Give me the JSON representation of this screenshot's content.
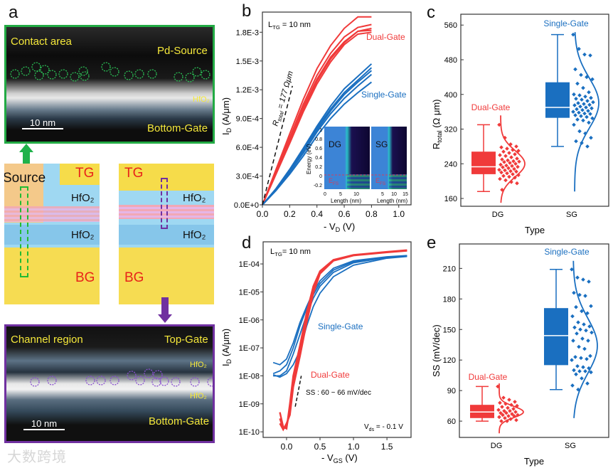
{
  "panel_labels": {
    "a": "a",
    "b": "b",
    "c": "c",
    "d": "d",
    "e": "e"
  },
  "colors": {
    "dual_gate": "#f03a3a",
    "single_gate": "#1a6fc0",
    "contact_border": "#22aa44",
    "channel_border": "#7030a0",
    "label_yellow": "#f5e83a"
  },
  "panel_a": {
    "contact_tem": {
      "title": "Contact area",
      "source": "Pd-Source",
      "oxide": "HfO₂",
      "gate": "Bottom-Gate",
      "scale": "10 nm"
    },
    "schematic_contact": {
      "source": "Source",
      "top_gate": "TG",
      "oxide_top": "HfO₂",
      "oxide_bottom": "HfO₂",
      "bottom_gate": "BG"
    },
    "schematic_channel": {
      "top_gate": "TG",
      "oxide_top": "HfO₂",
      "oxide_bottom": "HfO₂",
      "bottom_gate": "BG"
    },
    "channel_tem": {
      "title": "Channel region",
      "top_gate": "Top-Gate",
      "oxide_top": "HfO₂",
      "oxide_bottom": "HfO₂",
      "gate": "Bottom-Gate",
      "scale": "10 nm"
    }
  },
  "watermark": "大数跨境",
  "chart_data": [
    {
      "id": "b",
      "type": "line",
      "xlabel_main": "- V",
      "xlabel_sub": "D",
      "xlabel_tail": " (V)",
      "ylabel_main": "I",
      "ylabel_sub": "D",
      "ylabel_tail": " (A/μm)",
      "xlim": [
        0,
        1.09
      ],
      "ylim": [
        0,
        0.00201
      ],
      "xticks": [
        {
          "v": 0,
          "l": "0.0"
        },
        {
          "v": 0.2,
          "l": "0.2"
        },
        {
          "v": 0.4,
          "l": "0.4"
        },
        {
          "v": 0.6,
          "l": "0.6"
        },
        {
          "v": 0.8,
          "l": "0.8"
        },
        {
          "v": 1.0,
          "l": "1.0"
        }
      ],
      "yticks": [
        {
          "v": 0,
          "l": "0.0E+0"
        },
        {
          "v": 0.0003,
          "l": "3.0E-4"
        },
        {
          "v": 0.0006,
          "l": "6.0E-4"
        },
        {
          "v": 0.0009,
          "l": "9.0E-4"
        },
        {
          "v": 0.0012,
          "l": "1.2E-3"
        },
        {
          "v": 0.0015,
          "l": "1.5E-3"
        },
        {
          "v": 0.0018,
          "l": "1.8E-3"
        }
      ],
      "annotation_ltg": {
        "main": "L",
        "sub": "TG",
        "tail": " = 10 nm"
      },
      "annotation_r": {
        "main": "R",
        "sub": "total",
        "tail": " = 177 Ωμm"
      },
      "x": [
        0,
        0.1,
        0.2,
        0.3,
        0.4,
        0.5,
        0.6,
        0.7,
        0.8
      ],
      "series": [
        {
          "name": "Dual-Gate",
          "group": "dg",
          "label": "Dual-Gate",
          "curves": [
            [
              0,
              0.00037,
              0.00074,
              0.0011,
              0.00142,
              0.00166,
              0.00184,
              0.00196,
              0.00196
            ],
            [
              0,
              0.00035,
              0.0007,
              0.00105,
              0.00135,
              0.00158,
              0.00175,
              0.00185,
              0.00188
            ],
            [
              0,
              0.00034,
              0.00068,
              0.00102,
              0.00131,
              0.00154,
              0.0017,
              0.00181,
              0.00184
            ],
            [
              0,
              0.00033,
              0.00066,
              0.001,
              0.00129,
              0.00152,
              0.00169,
              0.00181,
              0.00182
            ],
            [
              0,
              0.00032,
              0.00064,
              0.00097,
              0.00126,
              0.00149,
              0.00167,
              0.00178,
              0.0018
            ]
          ]
        },
        {
          "name": "Single-Gate",
          "group": "sg",
          "label": "Single-Gate",
          "curves": [
            [
              0,
              0.00017,
              0.00037,
              0.00059,
              0.00082,
              0.00103,
              0.00121,
              0.00134,
              0.00147
            ],
            [
              0,
              0.00016,
              0.00036,
              0.00057,
              0.0008,
              0.001,
              0.00117,
              0.0013,
              0.00143
            ],
            [
              0,
              0.00016,
              0.00035,
              0.00056,
              0.00078,
              0.00098,
              0.00115,
              0.00128,
              0.0014
            ],
            [
              0,
              0.00015,
              0.00034,
              0.00054,
              0.00076,
              0.00095,
              0.00111,
              0.00124,
              0.00136
            ],
            [
              0,
              0.00015,
              0.00032,
              0.00051,
              0.00072,
              0.0009,
              0.00105,
              0.00117,
              0.00128
            ]
          ]
        }
      ],
      "dashed_fit": {
        "x": [
          0,
          0.22
        ],
        "y": [
          0,
          0.00124
        ]
      },
      "inset": {
        "ylabel": "Energy (eV)",
        "xlabel": "Length (nm)",
        "yticks": [
          "1",
          "0.8",
          "0.6",
          "0.4",
          "0.2",
          "0",
          "-0.2"
        ],
        "xticks_dg": [
          "0",
          "5",
          "10"
        ],
        "xticks_sg": [
          "5",
          "10",
          "15"
        ],
        "panels": [
          "DG",
          "SG"
        ],
        "fermi": {
          "main": "E",
          "sub": "FS"
        }
      }
    },
    {
      "id": "c",
      "type": "box",
      "ylabel_main": "R",
      "ylabel_sub": "total",
      "ylabel_tail": " (Ω μm)",
      "xlabel": "Type",
      "ylim": [
        142,
        585
      ],
      "yticks": [
        160,
        240,
        320,
        400,
        480,
        560
      ],
      "groups": [
        {
          "category": "DG",
          "label": "Dual-Gate",
          "group": "dg",
          "whisker": [
            176,
            330
          ],
          "box": [
            216,
            268
          ],
          "median": 233,
          "dist_mean": 240,
          "dist_sd": 30,
          "dist_range": [
            150,
            355
          ],
          "points": [
            330,
            300,
            285,
            280,
            278,
            275,
            272,
            270,
            268,
            265,
            262,
            260,
            258,
            255,
            252,
            250,
            248,
            246,
            245,
            244,
            242,
            240,
            238,
            236,
            235,
            233,
            232,
            230,
            228,
            226,
            225,
            223,
            222,
            220,
            218,
            216,
            214,
            212,
            210,
            208,
            205,
            202,
            198,
            195,
            180
          ]
        },
        {
          "category": "SG",
          "label": "Single-Gate",
          "group": "sg",
          "whisker": [
            280,
            538
          ],
          "box": [
            346,
            428
          ],
          "median": 370,
          "dist_mean": 380,
          "dist_sd": 58,
          "dist_range": [
            176,
            550
          ],
          "points": [
            538,
            505,
            492,
            490,
            458,
            445,
            440,
            435,
            425,
            415,
            405,
            400,
            398,
            395,
            392,
            390,
            388,
            385,
            382,
            380,
            378,
            376,
            375,
            372,
            370,
            368,
            366,
            364,
            362,
            360,
            358,
            356,
            355,
            352,
            350,
            348,
            345,
            342,
            340,
            335,
            330,
            315,
            310,
            300,
            292,
            288,
            280
          ]
        }
      ]
    },
    {
      "id": "d",
      "type": "line",
      "log_y": true,
      "xlabel_main": "- V",
      "xlabel_sub": "GS",
      "xlabel_tail": " (V)",
      "ylabel_main": "I",
      "ylabel_sub": "D",
      "ylabel_tail": " (A/μm)",
      "xlim": [
        -0.35,
        1.86
      ],
      "ylim_log10": [
        -10.2,
        -3.21
      ],
      "xticks": [
        {
          "v": 0,
          "l": "0.0"
        },
        {
          "v": 0.5,
          "l": "0.5"
        },
        {
          "v": 1.0,
          "l": "1.0"
        },
        {
          "v": 1.5,
          "l": "1.5"
        }
      ],
      "yticks": [
        {
          "v": -10,
          "l": "1E-10"
        },
        {
          "v": -9,
          "l": "1E-09"
        },
        {
          "v": -8,
          "l": "1E-08"
        },
        {
          "v": -7,
          "l": "1E-07"
        },
        {
          "v": -6,
          "l": "1E-06"
        },
        {
          "v": -5,
          "l": "1E-05"
        },
        {
          "v": -4,
          "l": "1E-04"
        }
      ],
      "annotation_ltg": {
        "main": "L",
        "sub": "TG",
        "tail": "= 10 nm"
      },
      "annotation_ss": "SS : 60 ~ 66 mV/dec",
      "annotation_vds": {
        "main": "V",
        "sub": "ds",
        "tail": " = - 0.1 V"
      },
      "series": [
        {
          "name": "Dual-Gate",
          "group": "dg",
          "label": "Dual-Gate",
          "x": [
            -0.1,
            -0.05,
            0,
            0.05,
            0.1,
            0.2,
            0.3,
            0.4,
            0.5,
            0.7,
            1.0,
            1.5,
            1.8
          ],
          "curves": [
            [
              5e-10,
              1.5e-10,
              1.3e-10,
              1e-09,
              1e-08,
              1.2e-07,
              1.8e-06,
              1.6e-05,
              5.5e-05,
              0.00014,
              0.00021,
              0.00027,
              0.00031
            ],
            [
              3e-10,
              1.3e-10,
              1.5e-10,
              6e-10,
              6e-09,
              8e-08,
              1.2e-06,
              1.2e-05,
              5e-05,
              0.000135,
              0.000205,
              0.000265,
              0.0003
            ],
            [
              2e-10,
              1.2e-10,
              2e-10,
              4e-10,
              4e-09,
              5e-08,
              8e-07,
              9e-06,
              4.5e-05,
              0.00013,
              0.0002,
              0.00026,
              0.000295
            ]
          ]
        },
        {
          "name": "Single-Gate",
          "group": "sg",
          "label": "Single-Gate",
          "x": [
            -0.2,
            -0.1,
            0,
            0.1,
            0.2,
            0.3,
            0.4,
            0.5,
            0.7,
            1.0,
            1.5,
            1.8
          ],
          "curves": [
            [
              3e-08,
              2.5e-08,
              4e-08,
              1.5e-07,
              8e-07,
              3e-06,
              1e-05,
              2.5e-05,
              7e-05,
              0.00013,
              0.00018,
              0.0002
            ],
            [
              1.2e-08,
              1.5e-08,
              2.5e-08,
              1e-07,
              6e-07,
              2.5e-06,
              8e-06,
              2e-05,
              6e-05,
              0.00012,
              0.000175,
              0.000195
            ],
            [
              1e-08,
              1e-08,
              1.5e-08,
              6e-08,
              3e-07,
              1.5e-06,
              6e-06,
              1.6e-05,
              5e-05,
              0.00011,
              0.00017,
              0.00019
            ],
            [
              1.1e-08,
              9e-09,
              1.2e-08,
              2.5e-08,
              8e-08,
              6e-07,
              3e-06,
              9e-06,
              3.5e-05,
              9e-05,
              0.00016,
              0.000185
            ]
          ]
        }
      ],
      "dashed_fit": {
        "x": [
          0.13,
          0.22
        ],
        "y_log10": [
          -9.1,
          -8
        ]
      }
    },
    {
      "id": "e",
      "type": "box",
      "ylabel": "SS (mV/dec)",
      "xlabel": "Type",
      "ylim": [
        44,
        234
      ],
      "yticks": [
        60,
        90,
        120,
        150,
        180,
        210
      ],
      "groups": [
        {
          "category": "DG",
          "label": "Dual-Gate",
          "group": "dg",
          "whisker": [
            60,
            94
          ],
          "box": [
            63,
            76
          ],
          "median": 69,
          "dist_mean": 69,
          "dist_sd": 5.5,
          "dist_range": [
            48,
            97
          ],
          "points": [
            94,
            83,
            81,
            79,
            78,
            77,
            76,
            75,
            74,
            73,
            72,
            71,
            70,
            70,
            69,
            68,
            68,
            67,
            66,
            66,
            65,
            65,
            64,
            63,
            62,
            61,
            60,
            60
          ]
        },
        {
          "category": "SG",
          "label": "Single-Gate",
          "group": "sg",
          "whisker": [
            91,
            209
          ],
          "box": [
            115,
            171
          ],
          "median": 144,
          "dist_mean": 134,
          "dist_sd": 27,
          "dist_range": [
            63,
            220
          ],
          "points": [
            209,
            201,
            199,
            197,
            186,
            184,
            183,
            173,
            172,
            168,
            166,
            163,
            157,
            155,
            153,
            152,
            150,
            149,
            147,
            146,
            141,
            139,
            139,
            133,
            131,
            124,
            123,
            122,
            121,
            120,
            114,
            113,
            112,
            110,
            109,
            109,
            108,
            106,
            102,
            97,
            95,
            91
          ]
        }
      ]
    }
  ]
}
